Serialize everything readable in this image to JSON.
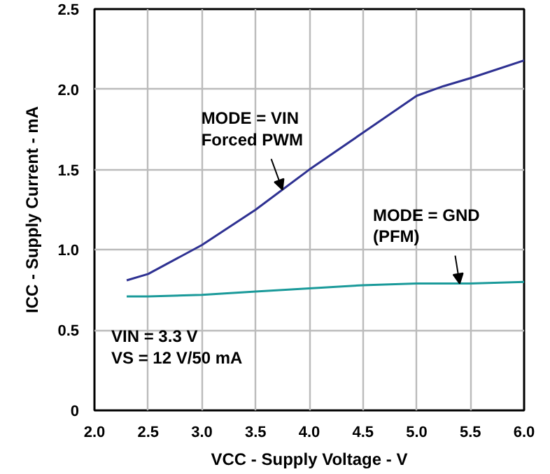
{
  "chart_data": {
    "type": "line",
    "xlabel": "VCC - Supply Voltage - V",
    "ylabel": "ICC - Supply Current - mA",
    "xlim": [
      2.0,
      6.0
    ],
    "ylim": [
      0,
      2.5
    ],
    "xticks": [
      {
        "value": 2.0,
        "label": "2.0"
      },
      {
        "value": 2.5,
        "label": "2.5"
      },
      {
        "value": 3.0,
        "label": "3.0"
      },
      {
        "value": 3.5,
        "label": "3.5"
      },
      {
        "value": 4.0,
        "label": "4.0"
      },
      {
        "value": 4.5,
        "label": "4.5"
      },
      {
        "value": 5.0,
        "label": "5.0"
      },
      {
        "value": 5.5,
        "label": "5.5"
      },
      {
        "value": 6.0,
        "label": "6.0"
      }
    ],
    "yticks": [
      0,
      {
        "value": 0.5,
        "label": "0.5"
      },
      {
        "value": 1.0,
        "label": "1.0"
      },
      {
        "value": 1.5,
        "label": "1.5"
      },
      {
        "value": 2.0,
        "label": "2.0"
      },
      {
        "value": 2.5,
        "label": "2.5"
      }
    ],
    "x": [
      2.3,
      2.5,
      3.0,
      3.5,
      4.0,
      4.5,
      5.0,
      5.25,
      5.5,
      6.0
    ],
    "series": [
      {
        "color": "#2e3192",
        "values": [
          0.81,
          0.85,
          1.03,
          1.25,
          1.5,
          1.73,
          1.96,
          2.02,
          2.07,
          2.18
        ]
      },
      {
        "color": "#1a9a9a",
        "values": [
          0.71,
          0.71,
          0.72,
          0.74,
          0.76,
          0.78,
          0.79,
          0.79,
          0.79,
          0.8
        ]
      }
    ],
    "annotations": [
      {
        "text": "MODE = VIN\nForced PWM",
        "x": 3.75,
        "y": 1.375
      },
      {
        "text": "MODE = GND\n(PFM)",
        "x": 5.4,
        "y": 0.79
      },
      "VIN = 3.3 V\nVS = 12 V/50 mA"
    ],
    "grid": true
  }
}
